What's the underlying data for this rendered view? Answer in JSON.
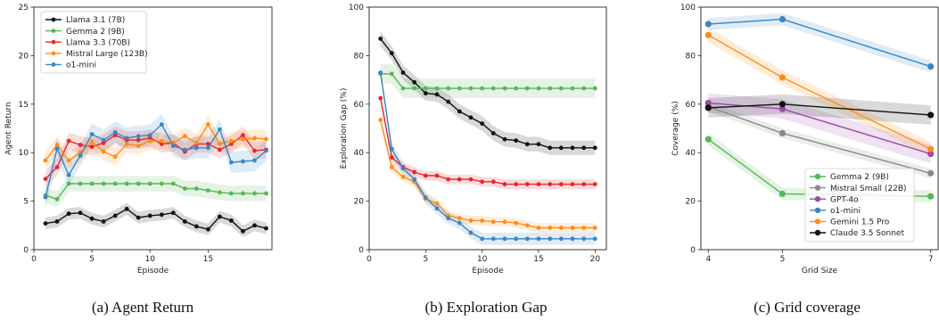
{
  "colors": {
    "black": "#111111",
    "green": "#55b755",
    "red": "#e5272c",
    "orange": "#ff8c1a",
    "blue": "#3d86c3",
    "gray": "#8a8a8a",
    "purple": "#9b4aa8"
  },
  "chart_data": [
    {
      "type": "line",
      "caption": "(a) Agent Return",
      "xlabel": "Episode",
      "ylabel": "Agent Return",
      "xlim": [
        0,
        20.5
      ],
      "ylim": [
        0,
        25
      ],
      "xticks": [
        0,
        5,
        10,
        15
      ],
      "yticks": [
        0,
        5,
        10,
        15,
        20,
        25
      ],
      "grid": false,
      "legend_position": "upper-left",
      "x": [
        1,
        2,
        3,
        4,
        5,
        6,
        7,
        8,
        9,
        10,
        11,
        12,
        13,
        14,
        15,
        16,
        17,
        18,
        19,
        20
      ],
      "series": [
        {
          "name": "Llama 3.1 (7B)",
          "color": "black",
          "band": 0.6,
          "values": [
            2.7,
            2.9,
            3.7,
            3.8,
            3.2,
            2.9,
            3.5,
            4.2,
            3.3,
            3.5,
            3.6,
            3.8,
            2.9,
            2.4,
            2.1,
            3.4,
            3.0,
            1.9,
            2.5,
            2.2
          ]
        },
        {
          "name": "Gemma 2 (9B)",
          "color": "green",
          "band": 0.8,
          "values": [
            5.6,
            5.2,
            6.8,
            6.8,
            6.8,
            6.8,
            6.8,
            6.8,
            6.8,
            6.8,
            6.8,
            6.8,
            6.3,
            6.3,
            6.1,
            5.9,
            5.8,
            5.8,
            5.8,
            5.8
          ]
        },
        {
          "name": "Llama 3.3 (70B)",
          "color": "red",
          "band": 0.9,
          "values": [
            7.3,
            8.5,
            11.2,
            10.8,
            10.6,
            11.0,
            11.8,
            11.3,
            11.3,
            11.5,
            10.9,
            11.0,
            10.1,
            10.9,
            10.9,
            10.3,
            10.9,
            11.8,
            10.2,
            10.3
          ]
        },
        {
          "name": "Mistral Large (123B)",
          "color": "orange",
          "band": 0.9,
          "values": [
            9.2,
            10.8,
            9.2,
            10.0,
            11.1,
            10.1,
            9.6,
            10.9,
            10.7,
            11.2,
            11.2,
            11.0,
            11.7,
            11.0,
            12.9,
            10.9,
            11.2,
            11.4,
            11.5,
            11.4
          ]
        },
        {
          "name": "o1-mini",
          "color": "blue",
          "band": 1.1,
          "values": [
            5.4,
            10.4,
            7.7,
            9.7,
            11.9,
            11.3,
            12.1,
            11.5,
            11.7,
            11.8,
            12.9,
            10.7,
            10.3,
            10.5,
            10.5,
            12.4,
            9.0,
            9.1,
            9.2,
            10.2
          ]
        }
      ]
    },
    {
      "type": "line",
      "caption": "(b) Exploration Gap",
      "xlabel": "Episode",
      "ylabel": "Exploration Gap (%)",
      "xlim": [
        0,
        21
      ],
      "ylim": [
        0,
        100
      ],
      "xticks": [
        0,
        5,
        10,
        15,
        20
      ],
      "yticks": [
        0,
        20,
        40,
        60,
        80,
        100
      ],
      "grid": false,
      "x": [
        1,
        2,
        3,
        4,
        5,
        6,
        7,
        8,
        9,
        10,
        11,
        12,
        13,
        14,
        15,
        16,
        17,
        18,
        19,
        20
      ],
      "series": [
        {
          "color": "black",
          "band": 3,
          "values": [
            87,
            81,
            73,
            69,
            64.5,
            64,
            61,
            57,
            54.5,
            52,
            48,
            45.5,
            45,
            43.5,
            43.5,
            42,
            42,
            42,
            42,
            42
          ]
        },
        {
          "color": "green",
          "band": 4,
          "values": [
            72.5,
            72.5,
            66.5,
            66.5,
            66.5,
            66.5,
            66.5,
            66.5,
            66.5,
            66.5,
            66.5,
            66.5,
            66.5,
            66.5,
            66.5,
            66.5,
            66.5,
            66.5,
            66.5,
            66.5
          ]
        },
        {
          "color": "red",
          "band": 2,
          "values": [
            62.5,
            38,
            34,
            32,
            30.5,
            30.5,
            29,
            29,
            29,
            28,
            28,
            27,
            27,
            27,
            27,
            27,
            27,
            27,
            27,
            27
          ]
        },
        {
          "color": "orange",
          "band": 2,
          "values": [
            53.5,
            34,
            30,
            28,
            21,
            19,
            14,
            13,
            12,
            12,
            11.5,
            11.5,
            11,
            10,
            9,
            9,
            9,
            9,
            9,
            9
          ]
        },
        {
          "color": "blue",
          "band": 2.5,
          "values": [
            73,
            41.5,
            33.5,
            29,
            21.5,
            17,
            13,
            11,
            7,
            4.5,
            4.5,
            4.5,
            4.5,
            4.5,
            4.5,
            4.5,
            4.5,
            4.5,
            4.5,
            4.5
          ]
        }
      ]
    },
    {
      "type": "line",
      "caption": "(c) Grid coverage",
      "xlabel": "Grid Size",
      "ylabel": "Coverage (%)",
      "xlim": [
        3.9,
        7.1
      ],
      "ylim": [
        0,
        100
      ],
      "xticks": [
        4,
        5,
        7
      ],
      "yticks": [
        0,
        20,
        40,
        60,
        80,
        100
      ],
      "grid": false,
      "legend_position": "lower-right",
      "x": [
        4,
        5,
        7
      ],
      "series": [
        {
          "name": "Gemma 2 (9B)",
          "color": "green",
          "band": 2.5,
          "values": [
            45.5,
            23,
            22
          ]
        },
        {
          "name": "Mistral Small (22B)",
          "color": "gray",
          "band": 2,
          "values": [
            59,
            48,
            31.5
          ]
        },
        {
          "name": "GPT-4o",
          "color": "purple",
          "band": 4,
          "values": [
            60.5,
            58,
            39.5
          ]
        },
        {
          "name": "o1-mini",
          "color": "blue",
          "band": 2.5,
          "values": [
            93,
            95,
            75.5
          ]
        },
        {
          "name": "Gemini 1.5 Pro",
          "color": "orange",
          "band": 3,
          "values": [
            88.5,
            71,
            41.5
          ]
        },
        {
          "name": "Claude 3.5 Sonnet",
          "color": "black",
          "band": 4,
          "values": [
            58.5,
            60,
            55.5
          ]
        }
      ]
    }
  ]
}
